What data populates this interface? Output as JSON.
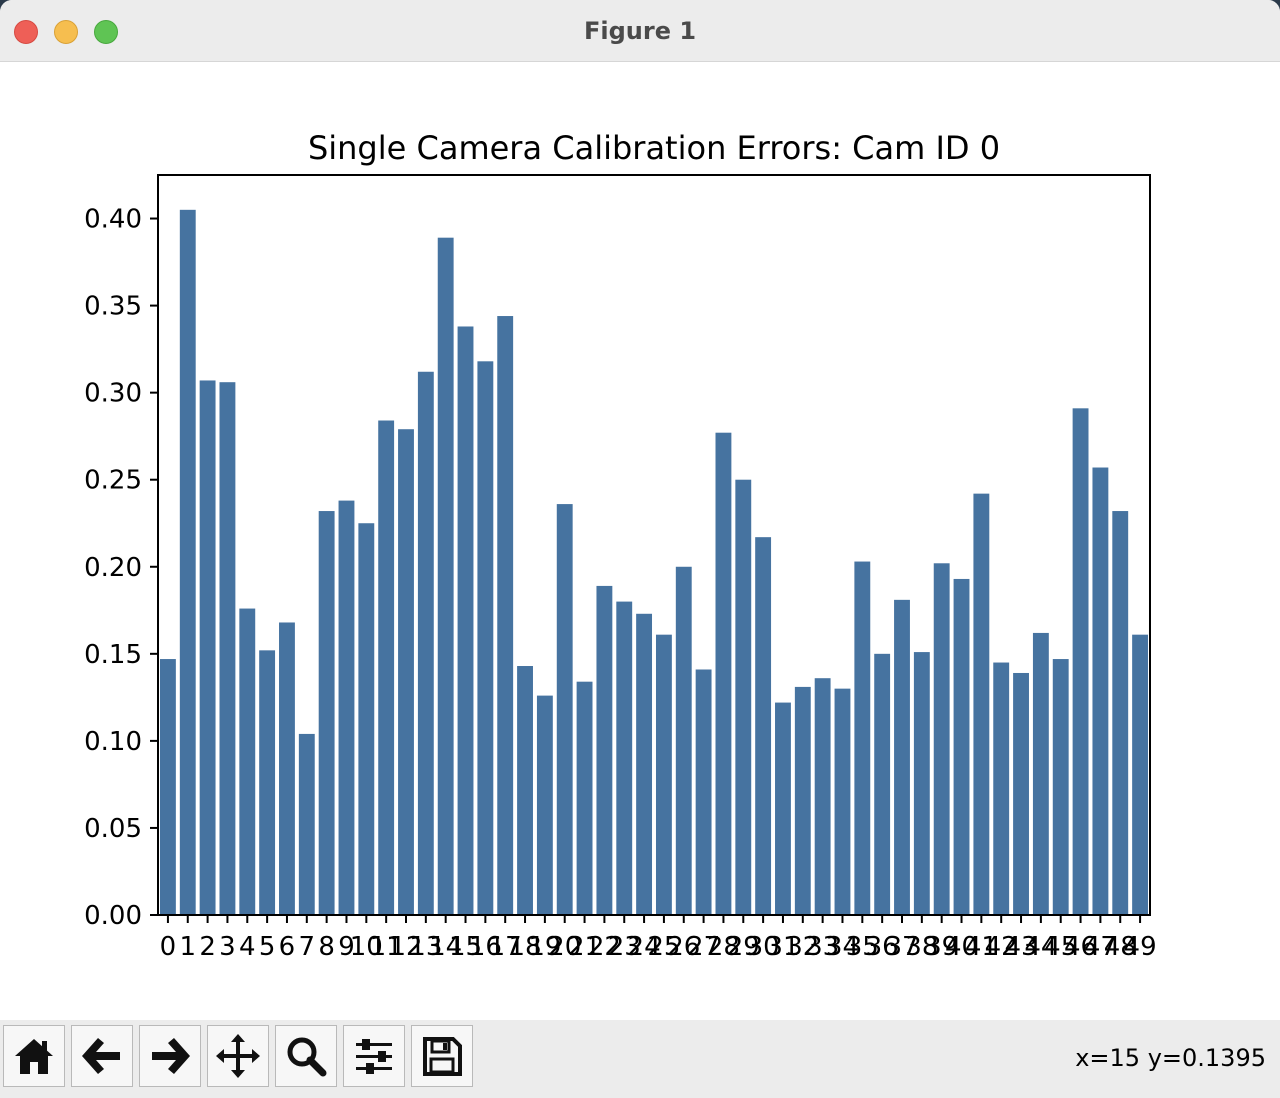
{
  "window": {
    "title": "Figure 1"
  },
  "status": {
    "coords": "x=15 y=0.1395"
  },
  "toolbar": {
    "buttons": [
      {
        "name": "home-icon"
      },
      {
        "name": "back-icon"
      },
      {
        "name": "forward-icon"
      },
      {
        "name": "pan-icon"
      },
      {
        "name": "zoom-icon"
      },
      {
        "name": "configure-subplots-icon"
      },
      {
        "name": "save-icon"
      }
    ]
  },
  "chart_data": {
    "type": "bar",
    "title": "Single Camera Calibration Errors: Cam ID 0",
    "xlabel": "",
    "ylabel": "",
    "ylim": [
      0,
      0.425
    ],
    "yticks": [
      "0.00",
      "0.05",
      "0.10",
      "0.15",
      "0.20",
      "0.25",
      "0.30",
      "0.35",
      "0.40"
    ],
    "color": "#4673a0",
    "categories": [
      "0",
      "1",
      "2",
      "3",
      "4",
      "5",
      "6",
      "7",
      "8",
      "9",
      "10",
      "11",
      "12",
      "13",
      "14",
      "15",
      "16",
      "17",
      "18",
      "19",
      "20",
      "21",
      "22",
      "23",
      "24",
      "25",
      "26",
      "27",
      "28",
      "29",
      "30",
      "31",
      "32",
      "33",
      "34",
      "35",
      "36",
      "37",
      "38",
      "39",
      "40",
      "41",
      "42",
      "43",
      "44",
      "45",
      "46",
      "47",
      "48",
      "49"
    ],
    "values": [
      0.147,
      0.405,
      0.307,
      0.306,
      0.176,
      0.152,
      0.168,
      0.104,
      0.232,
      0.238,
      0.225,
      0.284,
      0.279,
      0.312,
      0.389,
      0.338,
      0.318,
      0.344,
      0.143,
      0.126,
      0.236,
      0.134,
      0.189,
      0.18,
      0.173,
      0.161,
      0.2,
      0.141,
      0.277,
      0.25,
      0.217,
      0.122,
      0.131,
      0.136,
      0.13,
      0.203,
      0.15,
      0.181,
      0.151,
      0.202,
      0.193,
      0.242,
      0.145,
      0.139,
      0.162,
      0.147,
      0.291,
      0.257,
      0.232,
      0.161
    ]
  }
}
